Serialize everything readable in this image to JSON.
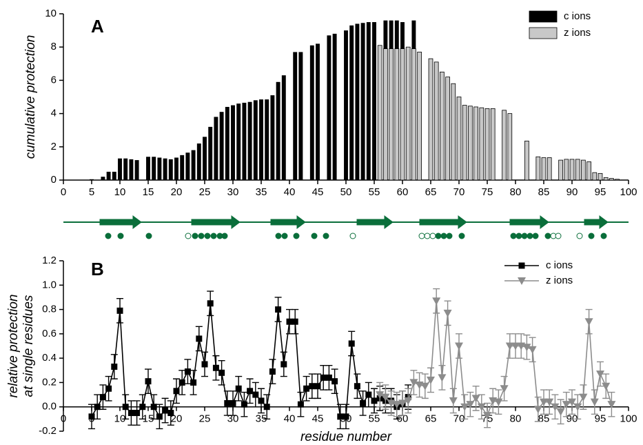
{
  "chart_data": [
    {
      "type": "bar",
      "panel_label": "A",
      "ylabel": "cumulative protection",
      "xlim": [
        0,
        100
      ],
      "xticks": [
        0,
        5,
        10,
        15,
        20,
        25,
        30,
        35,
        40,
        45,
        50,
        55,
        60,
        65,
        70,
        75,
        80,
        85,
        90,
        95,
        100
      ],
      "ylim": [
        0,
        10
      ],
      "yticks": [
        0,
        2,
        4,
        6,
        8,
        10
      ],
      "legend": "upper right",
      "series": [
        {
          "name": "c ions",
          "color": "#000000",
          "x": [
            1,
            2,
            3,
            4,
            5,
            6,
            7,
            8,
            9,
            10,
            11,
            12,
            13,
            14,
            15,
            16,
            17,
            18,
            19,
            20,
            21,
            22,
            23,
            24,
            25,
            26,
            27,
            28,
            29,
            30,
            31,
            32,
            33,
            34,
            35,
            36,
            37,
            38,
            39,
            40,
            41,
            42,
            43,
            44,
            45,
            46,
            47,
            48,
            49,
            50,
            51,
            52,
            53,
            54,
            55,
            56,
            57,
            58,
            59,
            60,
            61,
            62
          ],
          "values": [
            0,
            0,
            0,
            0,
            0.05,
            0,
            0.2,
            0.5,
            0.5,
            1.3,
            1.3,
            1.25,
            1.2,
            0,
            1.4,
            1.4,
            1.35,
            1.3,
            1.25,
            1.35,
            1.5,
            1.65,
            1.8,
            2.2,
            2.6,
            3.2,
            3.8,
            4.1,
            4.4,
            4.5,
            4.6,
            4.65,
            4.7,
            4.8,
            4.85,
            4.85,
            5.1,
            5.9,
            6.3,
            0,
            7.7,
            7.7,
            0,
            8.1,
            8.2,
            0,
            8.7,
            8.8,
            0,
            9.0,
            9.3,
            9.4,
            9.45,
            9.5,
            9.5,
            0,
            9.6,
            9.6,
            9.6,
            9.5,
            0,
            9.6
          ]
        },
        {
          "name": "z ions",
          "color": "#c8c8c8",
          "x": [
            56,
            57,
            58,
            59,
            60,
            61,
            62,
            63,
            64,
            65,
            66,
            67,
            68,
            69,
            70,
            71,
            72,
            73,
            74,
            75,
            76,
            77,
            78,
            79,
            80,
            81,
            82,
            83,
            84,
            85,
            86,
            87,
            88,
            89,
            90,
            91,
            92,
            93,
            94,
            95,
            96,
            97,
            98,
            99
          ],
          "values": [
            8.1,
            7.9,
            7.9,
            7.9,
            7.9,
            8.0,
            7.9,
            7.7,
            0,
            7.3,
            7.1,
            6.5,
            6.2,
            5.8,
            5.0,
            4.5,
            4.45,
            4.4,
            4.35,
            4.3,
            4.3,
            0,
            4.2,
            4.0,
            0,
            0,
            2.35,
            0,
            1.4,
            1.35,
            1.35,
            0,
            1.2,
            1.25,
            1.25,
            1.25,
            1.2,
            1.1,
            0.45,
            0.4,
            0.15,
            0.1,
            0.05,
            0
          ]
        }
      ]
    },
    {
      "type": "line",
      "panel_label": "B",
      "ylabel": [
        "relative protection",
        "at single residues"
      ],
      "xlabel": "residue number",
      "xlim": [
        0,
        100
      ],
      "xticks": [
        0,
        5,
        10,
        15,
        20,
        25,
        30,
        35,
        40,
        45,
        50,
        55,
        60,
        65,
        70,
        75,
        80,
        85,
        90,
        95,
        100
      ],
      "ylim": [
        -0.2,
        1.2
      ],
      "yticks": [
        -0.2,
        {
          "value": 0,
          "label": "0.0"
        },
        0.2,
        0.4,
        0.6,
        0.8,
        {
          "value": 1,
          "label": "1.0"
        },
        1.2
      ],
      "legend": "upper right",
      "series": [
        {
          "name": "c ions",
          "color": "#000000",
          "marker": "square",
          "x": [
            5,
            6,
            7,
            8,
            9,
            10,
            11,
            12,
            13,
            14,
            15,
            16,
            17,
            18,
            19,
            20,
            21,
            22,
            23,
            24,
            25,
            26,
            27,
            28,
            29,
            30,
            31,
            32,
            33,
            34,
            35,
            36,
            37,
            38,
            39,
            40,
            41,
            42,
            43,
            44,
            45,
            46,
            47,
            48,
            49,
            50,
            51,
            52,
            53,
            54,
            55,
            56,
            57,
            58,
            59,
            60,
            61
          ],
          "values": [
            -0.08,
            0.0,
            0.08,
            0.15,
            0.33,
            0.79,
            0.0,
            -0.05,
            -0.05,
            0.0,
            0.21,
            0.0,
            -0.08,
            -0.03,
            -0.05,
            0.13,
            0.2,
            0.29,
            0.2,
            0.56,
            0.35,
            0.85,
            0.32,
            0.28,
            0.03,
            0.03,
            0.15,
            0.02,
            0.13,
            0.1,
            0.05,
            0.0,
            0.29,
            0.8,
            0.35,
            0.7,
            0.7,
            0.02,
            0.15,
            0.17,
            0.17,
            0.24,
            0.24,
            0.21,
            -0.08,
            -0.08,
            0.52,
            0.17,
            0.03,
            0.1,
            0.05,
            0.07,
            0.05,
            0.05,
            0.0,
            0.03,
            0.08
          ],
          "errors": [
            0.1,
            0.1,
            0.1,
            0.1,
            0.1,
            0.1,
            0.1,
            0.1,
            0.1,
            0.1,
            0.1,
            0.1,
            0.1,
            0.1,
            0.1,
            0.1,
            0.1,
            0.1,
            0.1,
            0.1,
            0.1,
            0.1,
            0.1,
            0.1,
            0.1,
            0.1,
            0.1,
            0.1,
            0.1,
            0.1,
            0.1,
            0.1,
            0.1,
            0.1,
            0.1,
            0.1,
            0.1,
            0.1,
            0.1,
            0.1,
            0.1,
            0.1,
            0.1,
            0.1,
            0.1,
            0.1,
            0.1,
            0.1,
            0.1,
            0.1,
            0.1,
            0.1,
            0.1,
            0.1,
            0.1,
            0.1,
            0.1
          ]
        },
        {
          "name": "z ions",
          "color": "#8c8c8c",
          "marker": "triangle-down",
          "x": [
            56,
            57,
            58,
            59,
            60,
            61,
            62,
            63,
            64,
            65,
            66,
            67,
            68,
            69,
            70,
            71,
            72,
            73,
            74,
            75,
            76,
            77,
            78,
            79,
            80,
            81,
            82,
            83,
            84,
            85,
            86,
            87,
            88,
            89,
            90,
            91,
            92,
            93,
            94,
            95,
            96,
            97
          ],
          "values": [
            0.1,
            0.08,
            0.03,
            0.02,
            0.03,
            0.05,
            0.2,
            0.18,
            0.17,
            0.22,
            0.87,
            0.24,
            0.77,
            0.05,
            0.5,
            0.0,
            0.02,
            0.07,
            0.0,
            -0.07,
            0.05,
            0.04,
            0.15,
            0.5,
            0.5,
            0.5,
            0.49,
            0.47,
            -0.02,
            0.04,
            0.04,
            0.0,
            -0.04,
            0.02,
            0.04,
            0.0,
            0.08,
            0.7,
            0.04,
            0.27,
            0.17,
            0.02
          ],
          "errors": [
            0.1,
            0.1,
            0.1,
            0.1,
            0.1,
            0.1,
            0.1,
            0.1,
            0.1,
            0.1,
            0.1,
            0.1,
            0.1,
            0.1,
            0.1,
            0.1,
            0.1,
            0.1,
            0.1,
            0.1,
            0.1,
            0.1,
            0.1,
            0.1,
            0.1,
            0.1,
            0.1,
            0.1,
            0.1,
            0.1,
            0.1,
            0.1,
            0.1,
            0.1,
            0.1,
            0.1,
            0.1,
            0.1,
            0.1,
            0.1,
            0.1,
            0.1
          ]
        }
      ]
    }
  ]
}
